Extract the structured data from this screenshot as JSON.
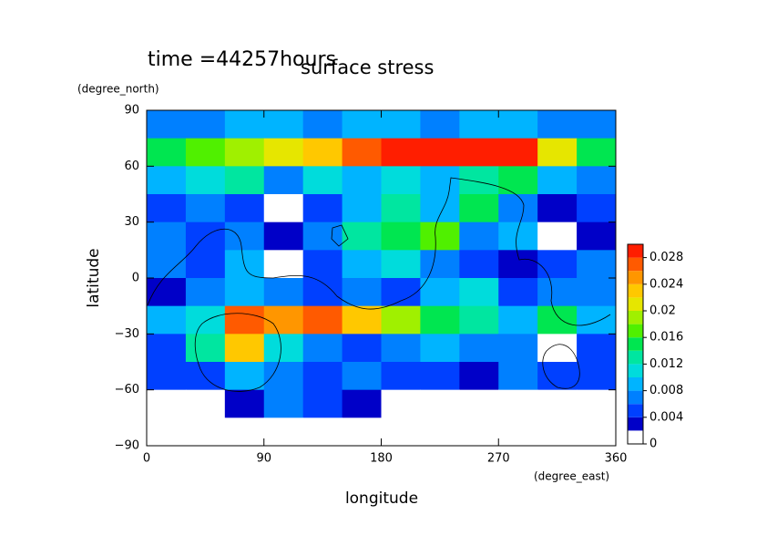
{
  "chart_data": {
    "type": "contour",
    "annotation": "time =44257hours",
    "title": "surface stress",
    "y_units": "(degree_north)",
    "x_units": "(degree_east)",
    "xlabel": "longitude",
    "ylabel": "latitude",
    "xlim": [
      0,
      360
    ],
    "ylim": [
      -90,
      90
    ],
    "xticks": [
      0,
      90,
      180,
      270,
      360
    ],
    "yticks": [
      90,
      60,
      30,
      0,
      {
        "value": -30,
        "label": "−30"
      },
      {
        "value": -60,
        "label": "−60"
      },
      {
        "value": -90,
        "label": "−90"
      }
    ],
    "x": [
      15,
      45,
      75,
      105,
      135,
      165,
      195,
      225,
      255,
      285,
      315,
      345
    ],
    "y": [
      82.5,
      67.5,
      52.5,
      37.5,
      22.5,
      7.5,
      -7.5,
      -22.5,
      -37.5,
      -52.5,
      -67.5,
      -82.5
    ],
    "z": [
      [
        0.006,
        0.006,
        0.008,
        0.008,
        0.006,
        0.008,
        0.008,
        0.006,
        0.008,
        0.008,
        0.006,
        0.006
      ],
      [
        0.014,
        0.016,
        0.018,
        0.02,
        0.022,
        0.026,
        0.029,
        0.029,
        0.028,
        0.029,
        0.02,
        0.014
      ],
      [
        0.008,
        0.01,
        0.012,
        0.006,
        0.01,
        0.008,
        0.01,
        0.008,
        0.012,
        0.014,
        0.008,
        0.006
      ],
      [
        0.004,
        0.006,
        0.004,
        0.001,
        0.004,
        0.008,
        0.012,
        0.008,
        0.014,
        0.006,
        0.002,
        0.004
      ],
      [
        0.006,
        0.004,
        0.006,
        0.002,
        0.006,
        0.012,
        0.014,
        0.016,
        0.006,
        0.008,
        0.001,
        0.003
      ],
      [
        0.006,
        0.004,
        0.008,
        0.001,
        0.004,
        0.008,
        0.01,
        0.006,
        0.004,
        0.002,
        0.004,
        0.006
      ],
      [
        0.003,
        0.006,
        0.008,
        0.006,
        0.004,
        0.006,
        0.004,
        0.008,
        0.01,
        0.004,
        0.006,
        0.006
      ],
      [
        0.008,
        0.01,
        0.026,
        0.024,
        0.026,
        0.022,
        0.018,
        0.014,
        0.012,
        0.008,
        0.014,
        0.008
      ],
      [
        0.004,
        0.012,
        0.022,
        0.01,
        0.006,
        0.004,
        0.006,
        0.008,
        0.006,
        0.006,
        0.001,
        0.004
      ],
      [
        0.004,
        0.004,
        0.008,
        0.006,
        0.004,
        0.006,
        0.004,
        0.004,
        0.002,
        0.006,
        0.004,
        0.004
      ],
      [
        0.001,
        0.001,
        0.002,
        0.006,
        0.004,
        0.002,
        0.001,
        0.001,
        0.001,
        0.001,
        0.001,
        0.001
      ],
      [
        0.001,
        0.001,
        0.001,
        0.001,
        0.001,
        0.001,
        0.001,
        0.001,
        0.001,
        0.001,
        0.001,
        0.001
      ]
    ],
    "levels": [
      0,
      0.002,
      0.004,
      0.006,
      0.008,
      0.01,
      0.012,
      0.014,
      0.016,
      0.018,
      0.02,
      0.022,
      0.024,
      0.026,
      0.028,
      0.03
    ],
    "colors": [
      "#ffffff",
      "#0000c8",
      "#0040ff",
      "#0080ff",
      "#00b4ff",
      "#00dcdc",
      "#00e6a0",
      "#00e650",
      "#50f000",
      "#a0f000",
      "#e6e600",
      "#ffc800",
      "#ff9600",
      "#ff5a00",
      "#ff1e00"
    ],
    "cbarlim": [
      0,
      0.03
    ],
    "cbarticks": [
      0,
      0.004,
      0.008,
      0.012,
      0.016,
      0.02,
      0.024,
      0.028
    ]
  }
}
